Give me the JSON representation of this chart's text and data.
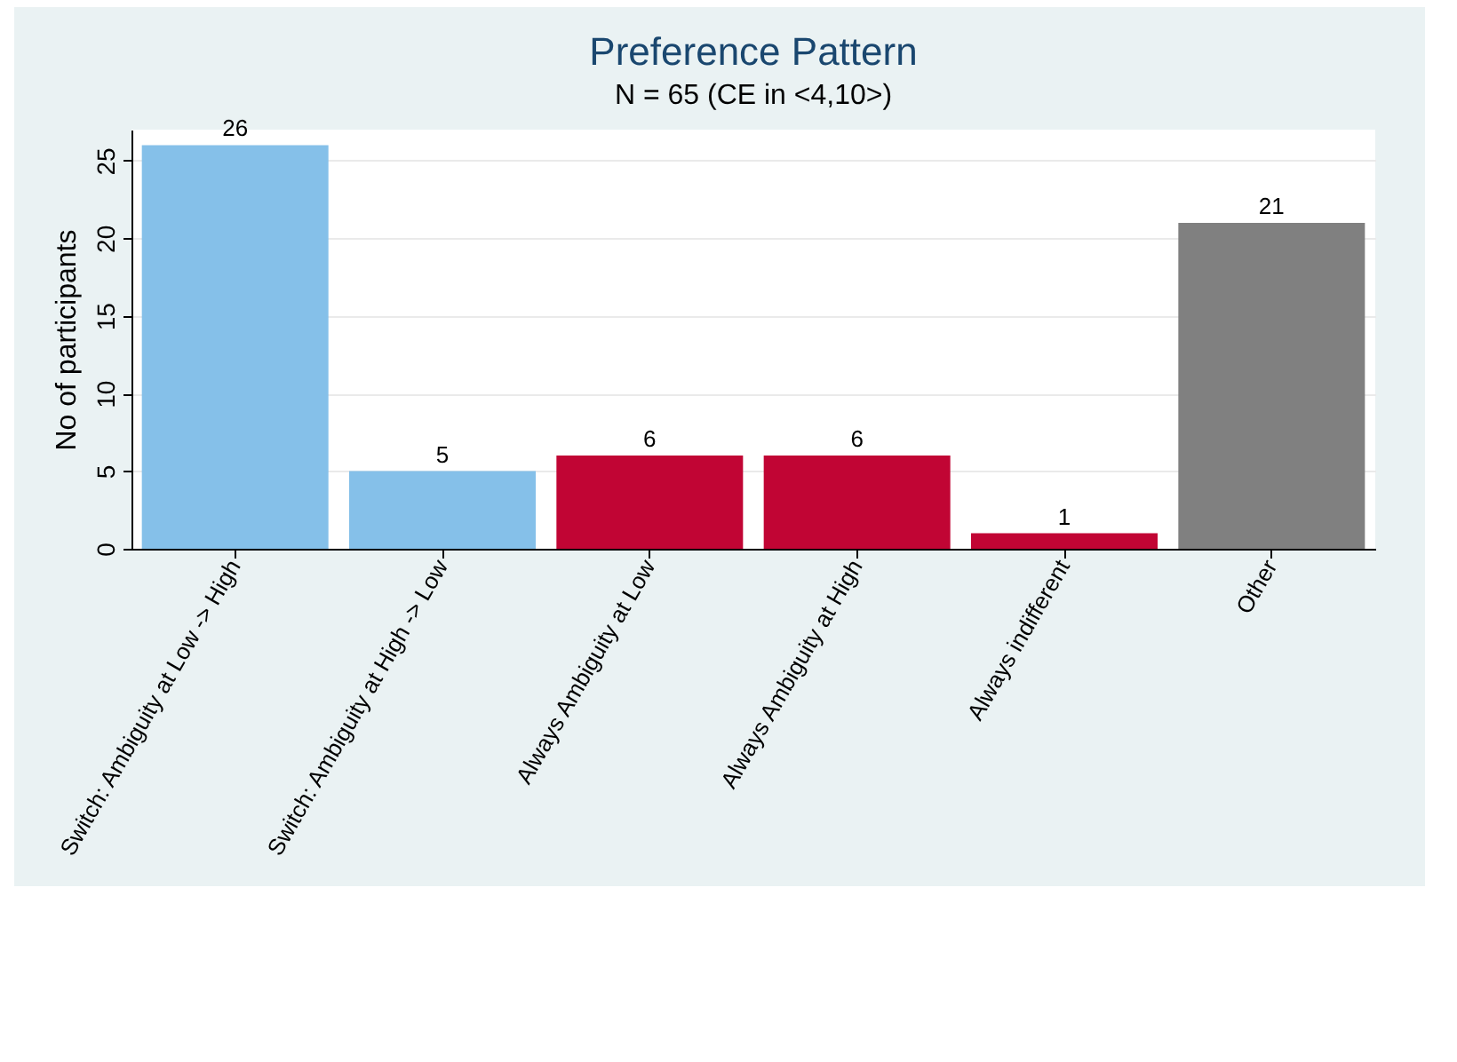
{
  "chart_data": {
    "type": "bar",
    "title": "Preference Pattern",
    "subtitle": "N = 65 (CE in <4,10>)",
    "ylabel": "No of participants",
    "categories": [
      "Switch: Ambiguity at Low -> High",
      "Switch: Ambiguity at High -> Low",
      "Always Ambiguity at Low",
      "Always Ambiguity at High",
      "Always indifferent",
      "Other"
    ],
    "values": [
      26,
      5,
      6,
      6,
      1,
      21
    ],
    "colors": [
      "#85c0e9",
      "#85c0e9",
      "#c10534",
      "#c10534",
      "#c10534",
      "#808080"
    ],
    "ylim": [
      0,
      27
    ],
    "yticks": [
      0,
      5,
      10,
      15,
      20,
      25
    ],
    "grid": "y",
    "data_labels": true
  }
}
